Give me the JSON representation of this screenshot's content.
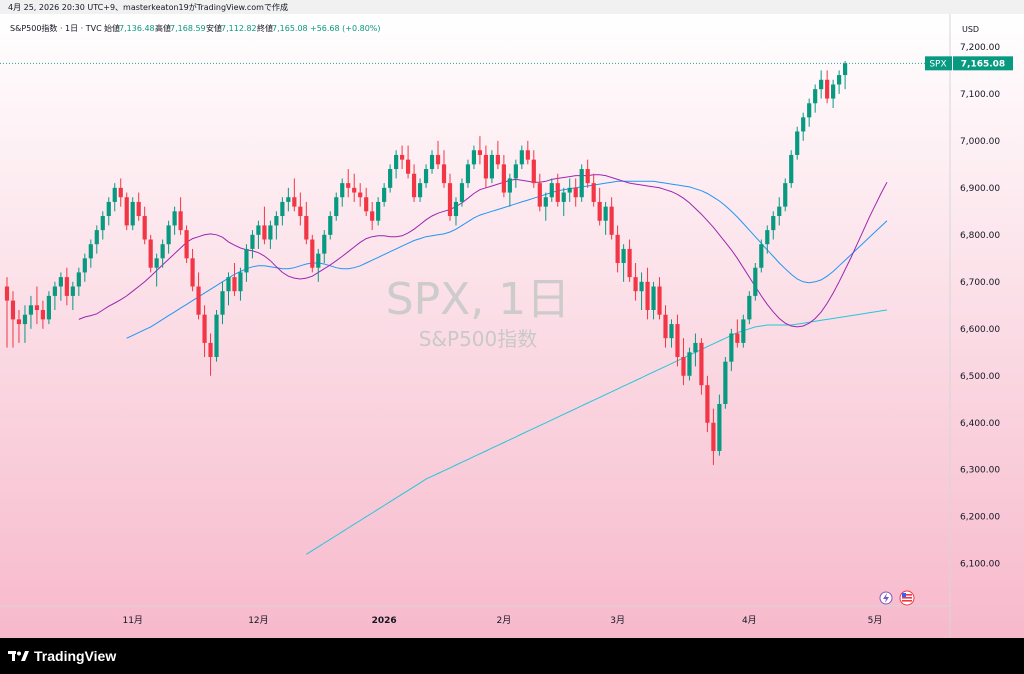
{
  "header": {
    "timestamp_line": "4月 25, 2026 20:30 UTC+9、masterkeaton19がTradingView.comで作成"
  },
  "legend": {
    "symbol_line": "S&P500指数 · 1日 · TVC",
    "open_label": "始値",
    "open_value": "7,136.48",
    "high_label": "高値",
    "high_value": "7,168.59",
    "low_label": "安値",
    "low_value": "7,112.82",
    "close_label": "終値",
    "close_value": "7,165.08",
    "change_value": "+56.68 (+0.80%)"
  },
  "watermark": {
    "main": "SPX, 1日",
    "sub": "S&P500指数"
  },
  "price_axis": {
    "currency": "USD"
  },
  "last_price": {
    "symbol": "SPX",
    "value": "7,165.08"
  },
  "branding": {
    "name": "TradingView"
  },
  "colors": {
    "up": "#089981",
    "down": "#f23645",
    "ma_short": "#9c27b0",
    "ma_mid": "#2196f3",
    "ma_long": "#26c6da",
    "bg_top": "#ffffff",
    "bg_bottom": "#f7b9cc"
  },
  "chart_data": {
    "type": "candlestick",
    "y_ticks": [
      6100,
      6200,
      6300,
      6400,
      6500,
      6600,
      6700,
      6800,
      6900,
      7000,
      7100,
      7200
    ],
    "y_tick_labels": [
      "6,100.00",
      "6,200.00",
      "6,300.00",
      "6,400.00",
      "6,500.00",
      "6,600.00",
      "6,700.00",
      "6,800.00",
      "6,900.00",
      "7,000.00",
      "7,100.00",
      "7,200.00"
    ],
    "ylim": [
      6010,
      7270
    ],
    "x_labels": [
      {
        "label": "11月",
        "index": 21
      },
      {
        "label": "12月",
        "index": 42
      },
      {
        "label": "2026",
        "index": 63
      },
      {
        "label": "2月",
        "index": 83
      },
      {
        "label": "3月",
        "index": 102
      },
      {
        "label": "4月",
        "index": 124
      },
      {
        "label": "5月",
        "index": 145
      }
    ],
    "x_count": 148,
    "candles_ohlc": [
      [
        6690,
        6710,
        6560,
        6660
      ],
      [
        6660,
        6680,
        6560,
        6620
      ],
      [
        6620,
        6640,
        6570,
        6610
      ],
      [
        6610,
        6650,
        6570,
        6630
      ],
      [
        6630,
        6670,
        6600,
        6650
      ],
      [
        6650,
        6690,
        6610,
        6640
      ],
      [
        6640,
        6660,
        6600,
        6620
      ],
      [
        6620,
        6680,
        6610,
        6670
      ],
      [
        6670,
        6700,
        6640,
        6690
      ],
      [
        6690,
        6720,
        6660,
        6710
      ],
      [
        6710,
        6730,
        6650,
        6670
      ],
      [
        6670,
        6700,
        6640,
        6690
      ],
      [
        6690,
        6730,
        6670,
        6720
      ],
      [
        6720,
        6760,
        6700,
        6750
      ],
      [
        6750,
        6790,
        6730,
        6780
      ],
      [
        6780,
        6820,
        6760,
        6810
      ],
      [
        6810,
        6850,
        6790,
        6840
      ],
      [
        6840,
        6880,
        6820,
        6870
      ],
      [
        6870,
        6910,
        6850,
        6900
      ],
      [
        6900,
        6920,
        6860,
        6880
      ],
      [
        6880,
        6890,
        6810,
        6820
      ],
      [
        6820,
        6880,
        6810,
        6870
      ],
      [
        6870,
        6890,
        6830,
        6840
      ],
      [
        6840,
        6860,
        6780,
        6790
      ],
      [
        6790,
        6800,
        6720,
        6730
      ],
      [
        6730,
        6760,
        6690,
        6750
      ],
      [
        6750,
        6790,
        6730,
        6780
      ],
      [
        6780,
        6830,
        6760,
        6820
      ],
      [
        6820,
        6860,
        6800,
        6850
      ],
      [
        6850,
        6880,
        6800,
        6810
      ],
      [
        6810,
        6820,
        6740,
        6750
      ],
      [
        6750,
        6770,
        6680,
        6690
      ],
      [
        6690,
        6720,
        6620,
        6630
      ],
      [
        6630,
        6650,
        6540,
        6570
      ],
      [
        6570,
        6590,
        6500,
        6540
      ],
      [
        6540,
        6640,
        6530,
        6630
      ],
      [
        6630,
        6700,
        6610,
        6680
      ],
      [
        6680,
        6720,
        6650,
        6710
      ],
      [
        6710,
        6740,
        6670,
        6680
      ],
      [
        6680,
        6730,
        6660,
        6720
      ],
      [
        6720,
        6780,
        6700,
        6770
      ],
      [
        6770,
        6810,
        6750,
        6800
      ],
      [
        6800,
        6830,
        6770,
        6820
      ],
      [
        6820,
        6860,
        6780,
        6790
      ],
      [
        6790,
        6830,
        6770,
        6820
      ],
      [
        6820,
        6850,
        6790,
        6840
      ],
      [
        6840,
        6880,
        6820,
        6870
      ],
      [
        6870,
        6900,
        6850,
        6880
      ],
      [
        6880,
        6920,
        6850,
        6860
      ],
      [
        6860,
        6890,
        6820,
        6840
      ],
      [
        6840,
        6870,
        6780,
        6790
      ],
      [
        6790,
        6800,
        6720,
        6730
      ],
      [
        6730,
        6770,
        6700,
        6760
      ],
      [
        6760,
        6810,
        6740,
        6800
      ],
      [
        6800,
        6850,
        6790,
        6840
      ],
      [
        6840,
        6890,
        6830,
        6880
      ],
      [
        6880,
        6920,
        6860,
        6910
      ],
      [
        6910,
        6940,
        6880,
        6900
      ],
      [
        6900,
        6930,
        6870,
        6890
      ],
      [
        6890,
        6910,
        6860,
        6880
      ],
      [
        6880,
        6900,
        6840,
        6850
      ],
      [
        6850,
        6870,
        6810,
        6830
      ],
      [
        6830,
        6880,
        6820,
        6870
      ],
      [
        6870,
        6910,
        6860,
        6900
      ],
      [
        6900,
        6950,
        6890,
        6940
      ],
      [
        6940,
        6980,
        6920,
        6970
      ],
      [
        6970,
        6990,
        6940,
        6960
      ],
      [
        6960,
        6990,
        6920,
        6930
      ],
      [
        6930,
        6950,
        6870,
        6880
      ],
      [
        6880,
        6920,
        6870,
        6910
      ],
      [
        6910,
        6950,
        6900,
        6940
      ],
      [
        6940,
        6980,
        6930,
        6970
      ],
      [
        6970,
        7000,
        6940,
        6950
      ],
      [
        6950,
        6980,
        6900,
        6910
      ],
      [
        6910,
        6930,
        6830,
        6840
      ],
      [
        6840,
        6880,
        6820,
        6870
      ],
      [
        6870,
        6920,
        6860,
        6910
      ],
      [
        6910,
        6960,
        6900,
        6950
      ],
      [
        6950,
        6990,
        6940,
        6980
      ],
      [
        6980,
        7010,
        6950,
        6970
      ],
      [
        6970,
        6990,
        6900,
        6920
      ],
      [
        6920,
        6980,
        6910,
        6970
      ],
      [
        6970,
        7000,
        6940,
        6950
      ],
      [
        6950,
        6970,
        6880,
        6890
      ],
      [
        6890,
        6930,
        6860,
        6920
      ],
      [
        6920,
        6960,
        6900,
        6950
      ],
      [
        6950,
        6990,
        6940,
        6980
      ],
      [
        6980,
        7000,
        6950,
        6960
      ],
      [
        6960,
        6980,
        6900,
        6910
      ],
      [
        6910,
        6930,
        6850,
        6860
      ],
      [
        6860,
        6890,
        6830,
        6880
      ],
      [
        6880,
        6920,
        6870,
        6910
      ],
      [
        6910,
        6930,
        6860,
        6870
      ],
      [
        6870,
        6900,
        6840,
        6890
      ],
      [
        6890,
        6920,
        6870,
        6900
      ],
      [
        6900,
        6920,
        6860,
        6880
      ],
      [
        6880,
        6950,
        6870,
        6940
      ],
      [
        6940,
        6960,
        6900,
        6910
      ],
      [
        6910,
        6930,
        6860,
        6870
      ],
      [
        6870,
        6900,
        6820,
        6830
      ],
      [
        6830,
        6870,
        6800,
        6860
      ],
      [
        6860,
        6880,
        6790,
        6800
      ],
      [
        6800,
        6820,
        6720,
        6740
      ],
      [
        6740,
        6780,
        6700,
        6770
      ],
      [
        6770,
        6790,
        6700,
        6710
      ],
      [
        6710,
        6740,
        6660,
        6680
      ],
      [
        6680,
        6720,
        6640,
        6700
      ],
      [
        6700,
        6730,
        6620,
        6640
      ],
      [
        6640,
        6700,
        6620,
        6690
      ],
      [
        6690,
        6710,
        6620,
        6630
      ],
      [
        6630,
        6650,
        6560,
        6580
      ],
      [
        6580,
        6620,
        6560,
        6610
      ],
      [
        6610,
        6630,
        6520,
        6540
      ],
      [
        6540,
        6580,
        6480,
        6500
      ],
      [
        6500,
        6560,
        6490,
        6550
      ],
      [
        6550,
        6590,
        6520,
        6570
      ],
      [
        6570,
        6580,
        6460,
        6480
      ],
      [
        6480,
        6500,
        6380,
        6400
      ],
      [
        6400,
        6430,
        6310,
        6340
      ],
      [
        6340,
        6460,
        6330,
        6440
      ],
      [
        6440,
        6540,
        6430,
        6530
      ],
      [
        6530,
        6600,
        6510,
        6590
      ],
      [
        6590,
        6620,
        6560,
        6570
      ],
      [
        6570,
        6630,
        6560,
        6620
      ],
      [
        6620,
        6680,
        6610,
        6670
      ],
      [
        6670,
        6740,
        6660,
        6730
      ],
      [
        6730,
        6790,
        6720,
        6780
      ],
      [
        6780,
        6820,
        6760,
        6810
      ],
      [
        6810,
        6850,
        6790,
        6840
      ],
      [
        6840,
        6880,
        6820,
        6860
      ],
      [
        6860,
        6920,
        6850,
        6910
      ],
      [
        6910,
        6980,
        6900,
        6970
      ],
      [
        6970,
        7030,
        6960,
        7020
      ],
      [
        7020,
        7060,
        7000,
        7050
      ],
      [
        7050,
        7090,
        7030,
        7080
      ],
      [
        7080,
        7120,
        7060,
        7110
      ],
      [
        7110,
        7150,
        7090,
        7130
      ],
      [
        7130,
        7150,
        7080,
        7090
      ],
      [
        7090,
        7130,
        7070,
        7120
      ],
      [
        7120,
        7150,
        7100,
        7140
      ],
      [
        7140,
        7170,
        7110,
        7165
      ]
    ],
    "ma_short": [
      6620,
      6625,
      6628,
      6632,
      6640,
      6648,
      6655,
      6662,
      6670,
      6680,
      6690,
      6700,
      6712,
      6724,
      6736,
      6748,
      6760,
      6772,
      6784,
      6792,
      6796,
      6800,
      6802,
      6800,
      6795,
      6785,
      6778,
      6772,
      6768,
      6766,
      6762,
      6755,
      6745,
      6732,
      6720,
      6712,
      6708,
      6706,
      6708,
      6712,
      6720,
      6728,
      6736,
      6745,
      6754,
      6764,
      6774,
      6784,
      6792,
      6796,
      6798,
      6798,
      6796,
      6796,
      6798,
      6804,
      6812,
      6822,
      6832,
      6840,
      6846,
      6850,
      6854,
      6860,
      6868,
      6878,
      6888,
      6896,
      6900,
      6904,
      6908,
      6912,
      6916,
      6918,
      6916,
      6914,
      6912,
      6912,
      6914,
      6918,
      6920,
      6922,
      6924,
      6926,
      6926,
      6926,
      6928,
      6928,
      6926,
      6922,
      6918,
      6914,
      6910,
      6908,
      6906,
      6904,
      6902,
      6900,
      6896,
      6892,
      6886,
      6878,
      6868,
      6856,
      6844,
      6830,
      6816,
      6800,
      6784,
      6768,
      6750,
      6730,
      6710,
      6690,
      6670,
      6652,
      6636,
      6622,
      6612,
      6606,
      6604,
      6606,
      6612,
      6622,
      6636,
      6654,
      6676,
      6700,
      6726,
      6752,
      6780,
      6808,
      6836,
      6862,
      6888,
      6912
    ],
    "ma_mid": [
      6580,
      6586,
      6592,
      6598,
      6604,
      6612,
      6620,
      6628,
      6636,
      6644,
      6652,
      6660,
      6668,
      6676,
      6684,
      6692,
      6700,
      6708,
      6716,
      6722,
      6728,
      6732,
      6734,
      6734,
      6732,
      6730,
      6728,
      6728,
      6730,
      6734,
      6738,
      6740,
      6740,
      6738,
      6734,
      6730,
      6728,
      6728,
      6730,
      6734,
      6740,
      6746,
      6752,
      6758,
      6764,
      6770,
      6776,
      6782,
      6788,
      6792,
      6796,
      6798,
      6800,
      6802,
      6806,
      6812,
      6820,
      6828,
      6836,
      6842,
      6846,
      6850,
      6854,
      6858,
      6862,
      6866,
      6870,
      6874,
      6878,
      6882,
      6886,
      6890,
      6894,
      6896,
      6898,
      6900,
      6902,
      6904,
      6906,
      6908,
      6910,
      6912,
      6914,
      6914,
      6914,
      6914,
      6914,
      6914,
      6914,
      6912,
      6910,
      6908,
      6906,
      6904,
      6902,
      6898,
      6894,
      6888,
      6880,
      6872,
      6862,
      6850,
      6838,
      6824,
      6810,
      6796,
      6782,
      6768,
      6754,
      6740,
      6728,
      6716,
      6706,
      6700,
      6698,
      6700,
      6704,
      6712,
      6722,
      6734,
      6746,
      6758,
      6770,
      6782,
      6794,
      6806,
      6818,
      6830
    ],
    "ma_long": [
      6120,
      6128,
      6136,
      6144,
      6152,
      6160,
      6168,
      6176,
      6184,
      6192,
      6200,
      6208,
      6216,
      6224,
      6232,
      6240,
      6248,
      6256,
      6264,
      6272,
      6280,
      6286,
      6292,
      6298,
      6304,
      6310,
      6316,
      6322,
      6328,
      6334,
      6340,
      6346,
      6352,
      6358,
      6364,
      6370,
      6376,
      6382,
      6388,
      6394,
      6400,
      6406,
      6412,
      6418,
      6424,
      6430,
      6436,
      6442,
      6448,
      6454,
      6460,
      6466,
      6472,
      6478,
      6484,
      6490,
      6496,
      6502,
      6508,
      6514,
      6520,
      6526,
      6532,
      6538,
      6544,
      6550,
      6556,
      6562,
      6568,
      6574,
      6580,
      6586,
      6592,
      6596,
      6600,
      6604,
      6606,
      6608,
      6608,
      6608,
      6608,
      6608,
      6610,
      6612,
      6614,
      6616,
      6618,
      6620,
      6622,
      6624,
      6626,
      6628,
      6630,
      6632,
      6634,
      6636,
      6638,
      6640
    ]
  }
}
